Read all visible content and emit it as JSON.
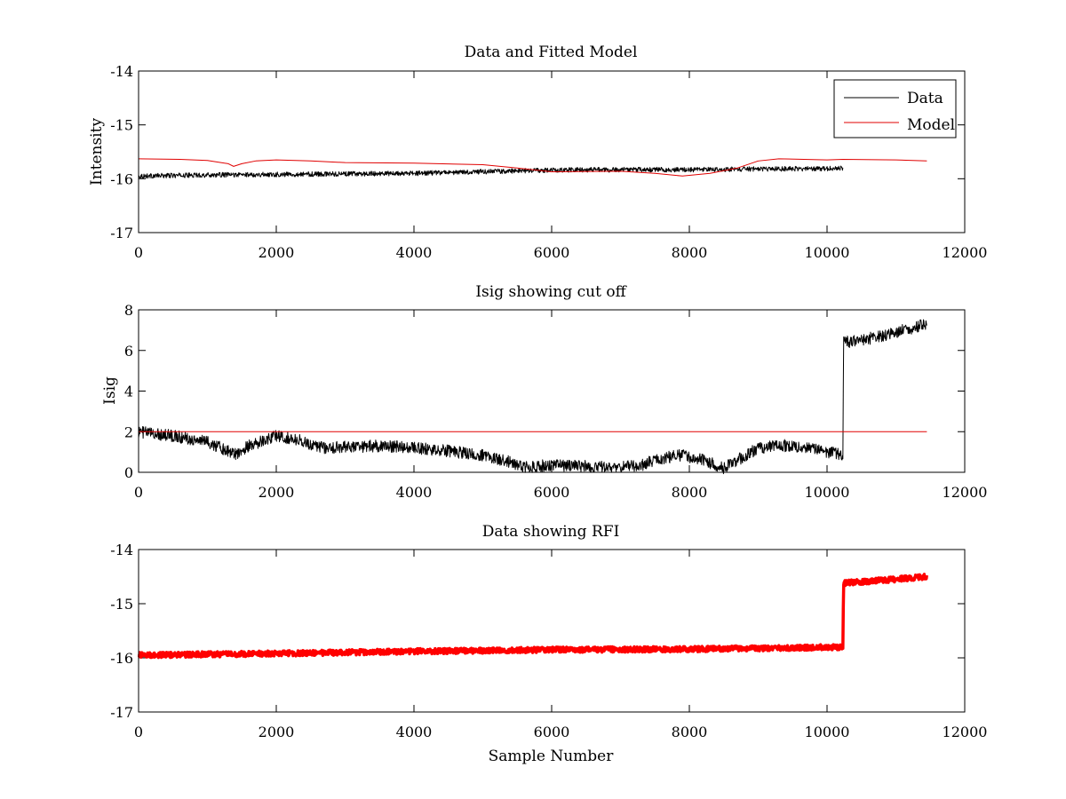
{
  "figure": {
    "background": "#ffffff"
  },
  "colors": {
    "data": "#000000",
    "model": "#e00000",
    "rfi": "#ff0000",
    "threshold": "#e00000",
    "axis": "#000000"
  },
  "chart_data": [
    {
      "type": "line",
      "title": "Data and Fitted Model",
      "xlabel": "",
      "ylabel": "Intensity",
      "xlim": [
        0,
        12000
      ],
      "ylim": [
        -17,
        -14
      ],
      "xticks": [
        0,
        2000,
        4000,
        6000,
        8000,
        10000,
        12000
      ],
      "yticks": [
        -17,
        -16,
        -15,
        -14
      ],
      "legend": {
        "position": "top-right",
        "entries": [
          "Data",
          "Model"
        ]
      },
      "series": [
        {
          "name": "Data",
          "color": "#000000",
          "noise": 0.045,
          "x": [
            0,
            1000,
            2000,
            3000,
            4000,
            5000,
            6000,
            7000,
            8000,
            9000,
            10000,
            10230
          ],
          "y": [
            -15.95,
            -15.93,
            -15.92,
            -15.91,
            -15.9,
            -15.87,
            -15.84,
            -15.83,
            -15.83,
            -15.82,
            -15.81,
            -15.8
          ]
        },
        {
          "name": "Model",
          "color": "#e00000",
          "noise": 0,
          "x": [
            0,
            600,
            1000,
            1300,
            1380,
            1500,
            1700,
            2000,
            2500,
            3000,
            4000,
            5000,
            5500,
            6000,
            7000,
            7500,
            7900,
            8300,
            8700,
            9000,
            9300,
            10000,
            10230,
            11000,
            11450
          ],
          "y": [
            -15.63,
            -15.64,
            -15.66,
            -15.72,
            -15.77,
            -15.72,
            -15.67,
            -15.65,
            -15.67,
            -15.7,
            -15.71,
            -15.74,
            -15.8,
            -15.87,
            -15.86,
            -15.9,
            -15.95,
            -15.9,
            -15.8,
            -15.67,
            -15.63,
            -15.65,
            -15.64,
            -15.65,
            -15.67
          ]
        }
      ]
    },
    {
      "type": "line",
      "title": "Isig showing cut off",
      "xlabel": "",
      "ylabel": "Isig",
      "xlim": [
        0,
        12000
      ],
      "ylim": [
        0,
        8
      ],
      "xticks": [
        0,
        2000,
        4000,
        6000,
        8000,
        10000,
        12000
      ],
      "yticks": [
        0,
        2,
        4,
        6,
        8
      ],
      "series": [
        {
          "name": "Isig",
          "color": "#000000",
          "noise": 0.3,
          "x": [
            0,
            500,
            1000,
            1400,
            1600,
            2000,
            2300,
            2700,
            3000,
            3500,
            4000,
            4500,
            5000,
            5400,
            5600,
            6000,
            6500,
            7000,
            7300,
            7600,
            7900,
            8200,
            8500,
            8800,
            9000,
            9300,
            9700,
            10230,
            10240,
            10500,
            11000,
            11450
          ],
          "y": [
            2.0,
            1.8,
            1.5,
            0.9,
            1.3,
            1.8,
            1.6,
            1.2,
            1.25,
            1.3,
            1.2,
            1.05,
            0.85,
            0.5,
            0.25,
            0.35,
            0.3,
            0.25,
            0.35,
            0.7,
            0.85,
            0.6,
            0.2,
            0.8,
            1.2,
            1.35,
            1.2,
            0.85,
            6.4,
            6.5,
            6.9,
            7.3
          ]
        },
        {
          "name": "Cut off",
          "color": "#e00000",
          "noise": 0,
          "x": [
            0,
            11450
          ],
          "y": [
            2,
            2
          ]
        }
      ]
    },
    {
      "type": "scatter",
      "title": "Data showing RFI",
      "xlabel": "Sample Number",
      "ylabel": "",
      "xlim": [
        0,
        12000
      ],
      "ylim": [
        -17,
        -14
      ],
      "xticks": [
        0,
        2000,
        4000,
        6000,
        8000,
        10000,
        12000
      ],
      "yticks": [
        -17,
        -16,
        -15,
        -14
      ],
      "series": [
        {
          "name": "Data",
          "color": "#000000",
          "noise": 0,
          "x": [
            0,
            2000,
            4000,
            6000,
            8000,
            10230,
            10240,
            11000,
            11450
          ],
          "y": [
            -15.95,
            -15.92,
            -15.88,
            -15.85,
            -15.84,
            -15.8,
            -14.62,
            -14.55,
            -14.5
          ]
        },
        {
          "name": "RFI",
          "color": "#ff0000",
          "noise": 0.05,
          "x": [
            0,
            2000,
            4000,
            6000,
            8000,
            10230,
            10240,
            11000,
            11450
          ],
          "y": [
            -15.95,
            -15.92,
            -15.88,
            -15.85,
            -15.84,
            -15.8,
            -14.62,
            -14.55,
            -14.5
          ]
        }
      ]
    }
  ]
}
